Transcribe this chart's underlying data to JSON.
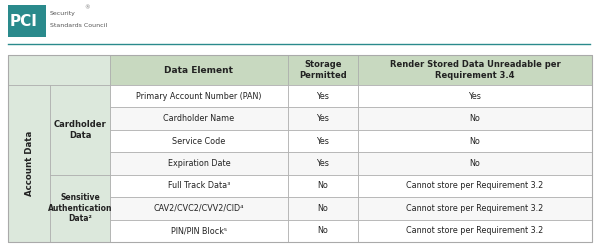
{
  "bg_color": "#ffffff",
  "teal_color": "#2a8a8c",
  "header_bg": "#c8d9c0",
  "row_bg_light": "#ffffff",
  "row_bg_alt": "#f7f7f7",
  "left_group_bg": "#dce8dc",
  "border_color": "#aaaaaa",
  "col_headers": [
    "Data Element",
    "Storage\nPermitted",
    "Render Stored Data Unreadable per\nRequirement 3.4"
  ],
  "rows": [
    {
      "element": "Primary Account Number (PAN)",
      "storage": "Yes",
      "render": "Yes"
    },
    {
      "element": "Cardholder Name",
      "storage": "Yes",
      "render": "No"
    },
    {
      "element": "Service Code",
      "storage": "Yes",
      "render": "No"
    },
    {
      "element": "Expiration Date",
      "storage": "Yes",
      "render": "No"
    },
    {
      "element": "Full Track Data³",
      "storage": "No",
      "render": "Cannot store per Requirement 3.2"
    },
    {
      "element": "CAV2/CVC2/CVV2/CID⁴",
      "storage": "No",
      "render": "Cannot store per Requirement 3.2"
    },
    {
      "element": "PIN/PIN Block⁵",
      "storage": "No",
      "render": "Cannot store per Requirement 3.2"
    }
  ],
  "logo_teal": "#2a8a8c",
  "logo_text": "PCI",
  "logo_sub1": "Security",
  "logo_sub2": "Standards Council"
}
